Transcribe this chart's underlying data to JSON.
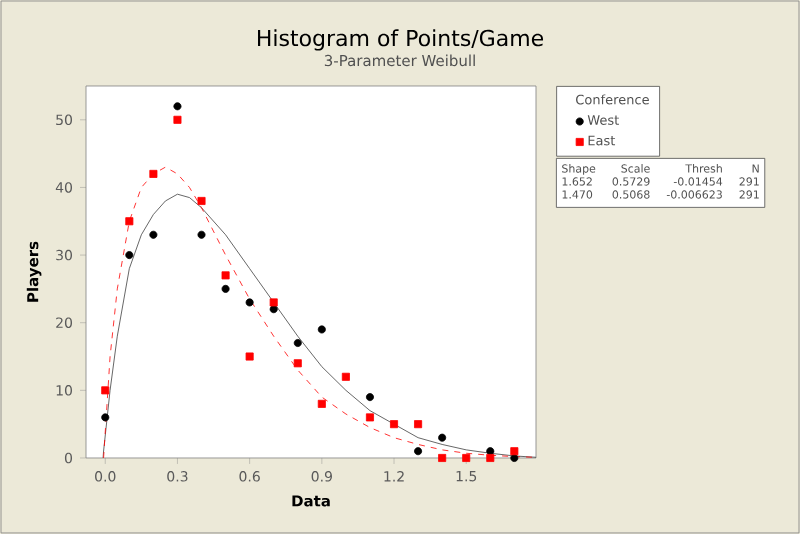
{
  "chart_data": {
    "type": "scatter",
    "title": "Histogram of Points/Game",
    "subtitle": "3-Parameter Weibull",
    "xlabel": "Data",
    "ylabel": "Players",
    "legend_title": "Conference",
    "legend": "right",
    "grid": false,
    "xlim": [
      -0.08,
      1.79
    ],
    "ylim": [
      0,
      55
    ],
    "xticks": [
      {
        "value": 0,
        "label": "0.0"
      },
      {
        "value": 0.3,
        "label": "0.3"
      },
      {
        "value": 0.6,
        "label": "0.6"
      },
      {
        "value": 0.9,
        "label": "0.9"
      },
      {
        "value": 1.2,
        "label": "1.2"
      },
      {
        "value": 1.5,
        "label": "1.5"
      }
    ],
    "yticks": [
      0,
      10,
      20,
      30,
      40,
      50
    ],
    "series": [
      {
        "name": "West",
        "marker": "circle",
        "color": "#000000",
        "x": [
          0,
          0.1,
          0.2,
          0.3,
          0.4,
          0.5,
          0.6,
          0.7,
          0.8,
          0.9,
          1.1,
          1.3,
          1.4,
          1.6,
          1.7
        ],
        "values": [
          6,
          30,
          33,
          52,
          33,
          25,
          23,
          22,
          17,
          19,
          9,
          1,
          3,
          1,
          0
        ]
      },
      {
        "name": "East",
        "marker": "square",
        "color": "#ff0000",
        "x": [
          0,
          0.1,
          0.2,
          0.3,
          0.4,
          0.5,
          0.6,
          0.7,
          0.8,
          0.9,
          1.0,
          1.1,
          1.2,
          1.3,
          1.4,
          1.5,
          1.6,
          1.7
        ],
        "values": [
          10,
          35,
          42,
          50,
          38,
          27,
          15,
          23,
          14,
          8,
          12,
          6,
          5,
          5,
          0,
          0,
          0,
          1
        ]
      },
      {
        "type": "line",
        "line_style": "solid",
        "color": "#404040",
        "x": [
          -0.01,
          0.02,
          0.05,
          0.1,
          0.15,
          0.2,
          0.25,
          0.3,
          0.35,
          0.4,
          0.5,
          0.6,
          0.7,
          0.8,
          0.9,
          1.0,
          1.1,
          1.2,
          1.3,
          1.4,
          1.5,
          1.6,
          1.7,
          1.79
        ],
        "values": [
          0,
          10,
          18,
          28,
          33,
          36,
          38,
          39,
          38.5,
          37,
          33,
          28,
          23,
          18,
          13.5,
          10,
          7,
          5,
          3,
          2,
          1.2,
          0.7,
          0.3,
          0.1
        ]
      },
      {
        "type": "line",
        "line_style": "dashed",
        "color": "#ff0000",
        "x": [
          -0.007,
          0.02,
          0.05,
          0.1,
          0.15,
          0.2,
          0.25,
          0.3,
          0.35,
          0.4,
          0.5,
          0.6,
          0.7,
          0.8,
          0.9,
          1.0,
          1.1,
          1.2,
          1.3,
          1.4,
          1.5,
          1.6,
          1.7,
          1.79
        ],
        "values": [
          0,
          15,
          25,
          35,
          40,
          42,
          43,
          42,
          40,
          37,
          30,
          23.5,
          18,
          13,
          9,
          6.5,
          4.5,
          3,
          2,
          1.2,
          0.7,
          0.4,
          0.2,
          0.1
        ]
      }
    ],
    "annotations": [
      "Shape",
      "Scale",
      "Thresh",
      "N",
      "1.652",
      "0.5729",
      "-0.01454",
      "291",
      "1.470",
      "0.5068",
      "-0.006623",
      "291"
    ]
  }
}
